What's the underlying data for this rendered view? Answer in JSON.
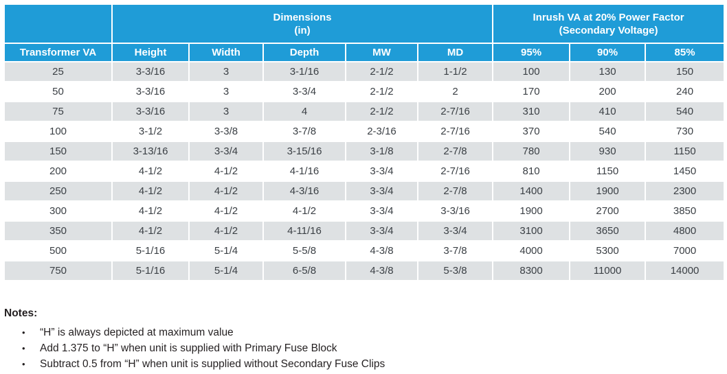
{
  "table": {
    "group_headers": {
      "corner": "",
      "dimensions": {
        "line1": "Dimensions",
        "line2": "(in)"
      },
      "inrush": {
        "line1": "Inrush VA at 20% Power Factor",
        "line2": "(Secondary Voltage)"
      }
    },
    "columns": [
      "Transformer VA",
      "Height",
      "Width",
      "Depth",
      "MW",
      "MD",
      "95%",
      "90%",
      "85%"
    ],
    "rows": [
      [
        "25",
        "3-3/16",
        "3",
        "3-1/16",
        "2-1/2",
        "1-1/2",
        "100",
        "130",
        "150"
      ],
      [
        "50",
        "3-3/16",
        "3",
        "3-3/4",
        "2-1/2",
        "2",
        "170",
        "200",
        "240"
      ],
      [
        "75",
        "3-3/16",
        "3",
        "4",
        "2-1/2",
        "2-7/16",
        "310",
        "410",
        "540"
      ],
      [
        "100",
        "3-1/2",
        "3-3/8",
        "3-7/8",
        "2-3/16",
        "2-7/16",
        "370",
        "540",
        "730"
      ],
      [
        "150",
        "3-13/16",
        "3-3/4",
        "3-15/16",
        "3-1/8",
        "2-7/8",
        "780",
        "930",
        "1150"
      ],
      [
        "200",
        "4-1/2",
        "4-1/2",
        "4-1/16",
        "3-3/4",
        "2-7/16",
        "810",
        "1150",
        "1450"
      ],
      [
        "250",
        "4-1/2",
        "4-1/2",
        "4-3/16",
        "3-3/4",
        "2-7/8",
        "1400",
        "1900",
        "2300"
      ],
      [
        "300",
        "4-1/2",
        "4-1/2",
        "4-1/2",
        "3-3/4",
        "3-3/16",
        "1900",
        "2700",
        "3850"
      ],
      [
        "350",
        "4-1/2",
        "4-1/2",
        "4-11/16",
        "3-3/4",
        "3-3/4",
        "3100",
        "3650",
        "4800"
      ],
      [
        "500",
        "5-1/16",
        "5-1/4",
        "5-5/8",
        "4-3/8",
        "3-7/8",
        "4000",
        "5300",
        "7000"
      ],
      [
        "750",
        "5-1/16",
        "5-1/4",
        "6-5/8",
        "4-3/8",
        "5-3/8",
        "8300",
        "11000",
        "14000"
      ]
    ]
  },
  "notes": {
    "title": "Notes:",
    "bullet_glyph": "•",
    "items": [
      "“H” is always depicted at maximum value",
      "Add 1.375 to “H” when unit is supplied with Primary Fuse Block",
      "Subtract 0.5 from “H” when unit is supplied without Secondary Fuse Clips"
    ]
  },
  "colors": {
    "header_blue": "#1F9CD7",
    "header_text": "#FFFFFF",
    "row_gray": "#DEE1E3",
    "row_white": "#FFFFFF",
    "cell_text": "#3A3F44",
    "notes_text": "#231F20"
  }
}
